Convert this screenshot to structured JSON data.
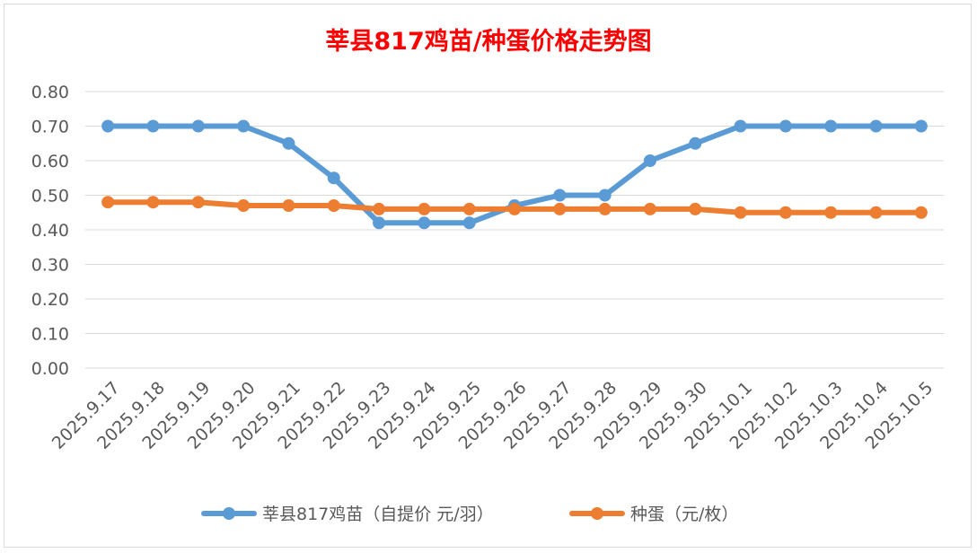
{
  "chart_data": {
    "type": "line",
    "title": "莘县817鸡苗/种蛋价格走势图",
    "title_color": "#ff0000",
    "xlabel": "",
    "ylabel": "",
    "ylim": [
      0,
      0.8
    ],
    "y_ticks": [
      "0.00",
      "0.10",
      "0.20",
      "0.30",
      "0.40",
      "0.50",
      "0.60",
      "0.70",
      "0.80"
    ],
    "grid": true,
    "legend_position": "bottom",
    "categories": [
      "2025.9.17",
      "2025.9.18",
      "2025.9.19",
      "2025.9.20",
      "2025.9.21",
      "2025.9.22",
      "2025.9.23",
      "2025.9.24",
      "2025.9.25",
      "2025.9.26",
      "2025.9.27",
      "2025.9.28",
      "2025.9.29",
      "2025.9.30",
      "2025.10.1",
      "2025.10.2",
      "2025.10.3",
      "2025.10.4",
      "2025.10.5"
    ],
    "series": [
      {
        "name": "莘县817鸡苗（自提价 元/羽）",
        "color": "#5b9bd5",
        "values": [
          0.7,
          0.7,
          0.7,
          0.7,
          0.65,
          0.55,
          0.42,
          0.42,
          0.42,
          0.47,
          0.5,
          0.5,
          0.6,
          0.65,
          0.7,
          0.7,
          0.7,
          0.7,
          0.7
        ]
      },
      {
        "name": "种蛋（元/枚）",
        "color": "#ed7d31",
        "values": [
          0.48,
          0.48,
          0.48,
          0.47,
          0.47,
          0.47,
          0.46,
          0.46,
          0.46,
          0.46,
          0.46,
          0.46,
          0.46,
          0.46,
          0.45,
          0.45,
          0.45,
          0.45,
          0.45
        ]
      }
    ]
  }
}
